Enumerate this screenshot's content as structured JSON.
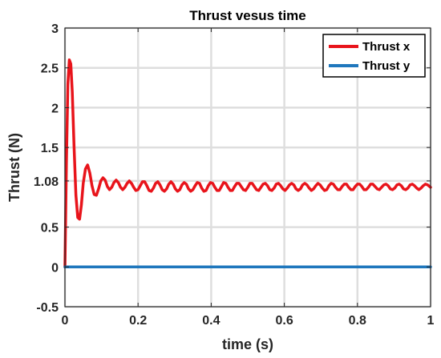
{
  "chart_data": {
    "type": "line",
    "title": "Thrust vesus time",
    "xlabel": "time (s)",
    "ylabel": "Thrust (N)",
    "xlim": [
      0,
      1
    ],
    "ylim": [
      -0.5,
      3
    ],
    "grid": true,
    "legend_position": "top-right",
    "x_ticks": [
      {
        "value": 0,
        "label": "0"
      },
      {
        "value": 0.2,
        "label": "0.2"
      },
      {
        "value": 0.4,
        "label": "0.4"
      },
      {
        "value": 0.6,
        "label": "0.6"
      },
      {
        "value": 0.8,
        "label": "0.8"
      },
      {
        "value": 1,
        "label": "1"
      }
    ],
    "y_ticks": [
      {
        "value": -0.5,
        "label": "-0.5"
      },
      {
        "value": 0,
        "label": "0"
      },
      {
        "value": 0.5,
        "label": "0.5"
      },
      {
        "value": 1.08,
        "label": "1.08"
      },
      {
        "value": 1.5,
        "label": "1.5"
      },
      {
        "value": 2,
        "label": "2"
      },
      {
        "value": 2.5,
        "label": "2.5"
      },
      {
        "value": 3,
        "label": "3"
      }
    ],
    "series": [
      {
        "name": "Thrust x",
        "color": "#e8141b",
        "x": [
          0,
          0.004,
          0.008,
          0.012,
          0.016,
          0.02,
          0.025,
          0.03,
          0.035,
          0.04,
          0.045,
          0.05,
          0.056,
          0.062,
          0.068,
          0.074,
          0.08,
          0.086,
          0.092,
          0.098,
          0.104,
          0.11,
          0.116,
          0.122,
          0.128,
          0.134,
          0.14,
          0.146,
          0.152,
          0.158,
          0.164,
          0.17,
          0.176,
          0.182,
          0.188,
          0.194,
          0.2,
          0.206,
          0.212,
          0.218,
          0.224,
          0.23,
          0.236,
          0.242,
          0.248,
          0.254,
          0.26,
          0.266,
          0.272,
          0.278,
          0.284,
          0.29,
          0.296,
          0.302,
          0.308,
          0.314,
          0.32,
          0.326,
          0.332,
          0.338,
          0.344,
          0.35,
          0.356,
          0.362,
          0.368,
          0.374,
          0.38,
          0.386,
          0.392,
          0.398,
          0.404,
          0.41,
          0.416,
          0.422,
          0.428,
          0.434,
          0.44,
          0.446,
          0.452,
          0.458,
          0.464,
          0.47,
          0.476,
          0.482,
          0.488,
          0.494,
          0.5,
          0.506,
          0.512,
          0.518,
          0.524,
          0.53,
          0.536,
          0.542,
          0.548,
          0.554,
          0.56,
          0.566,
          0.572,
          0.578,
          0.584,
          0.59,
          0.596,
          0.602,
          0.608,
          0.614,
          0.62,
          0.626,
          0.632,
          0.638,
          0.644,
          0.65,
          0.656,
          0.662,
          0.668,
          0.674,
          0.68,
          0.686,
          0.692,
          0.698,
          0.704,
          0.71,
          0.716,
          0.722,
          0.728,
          0.734,
          0.74,
          0.746,
          0.752,
          0.758,
          0.764,
          0.77,
          0.776,
          0.782,
          0.788,
          0.794,
          0.8,
          0.806,
          0.812,
          0.818,
          0.824,
          0.83,
          0.836,
          0.842,
          0.848,
          0.854,
          0.86,
          0.866,
          0.872,
          0.878,
          0.884,
          0.89,
          0.896,
          0.902,
          0.908,
          0.914,
          0.92,
          0.926,
          0.932,
          0.938,
          0.944,
          0.95,
          0.956,
          0.962,
          0.968,
          0.974,
          0.98,
          0.986,
          0.992,
          1.0
        ],
        "values": [
          0,
          1.3,
          2.3,
          2.6,
          2.55,
          2.2,
          1.5,
          0.9,
          0.62,
          0.6,
          0.78,
          1.05,
          1.23,
          1.28,
          1.18,
          1.02,
          0.91,
          0.9,
          0.98,
          1.08,
          1.12,
          1.09,
          1.01,
          0.97,
          1.0,
          1.06,
          1.09,
          1.06,
          1.0,
          0.97,
          1.0,
          1.05,
          1.08,
          1.05,
          1.0,
          0.96,
          0.97,
          1.02,
          1.07,
          1.07,
          1.02,
          0.96,
          0.95,
          0.99,
          1.05,
          1.07,
          1.03,
          0.97,
          0.95,
          0.98,
          1.04,
          1.07,
          1.04,
          0.98,
          0.95,
          0.97,
          1.03,
          1.06,
          1.04,
          0.98,
          0.95,
          0.97,
          1.02,
          1.06,
          1.05,
          0.99,
          0.95,
          0.96,
          1.02,
          1.06,
          1.05,
          1.0,
          0.96,
          0.96,
          1.01,
          1.06,
          1.05,
          1.0,
          0.96,
          0.96,
          1.01,
          1.05,
          1.05,
          1.01,
          0.97,
          0.96,
          1.0,
          1.05,
          1.05,
          1.01,
          0.97,
          0.96,
          1.0,
          1.04,
          1.05,
          1.02,
          0.97,
          0.96,
          0.99,
          1.04,
          1.05,
          1.02,
          0.98,
          0.96,
          0.99,
          1.03,
          1.05,
          1.03,
          0.98,
          0.96,
          0.98,
          1.03,
          1.05,
          1.03,
          0.99,
          0.96,
          0.98,
          1.02,
          1.05,
          1.03,
          0.99,
          0.96,
          0.97,
          1.02,
          1.05,
          1.04,
          1.0,
          0.97,
          0.97,
          1.01,
          1.04,
          1.04,
          1.0,
          0.97,
          0.97,
          1.01,
          1.04,
          1.04,
          1.01,
          0.97,
          0.97,
          1.0,
          1.04,
          1.04,
          1.01,
          0.98,
          0.97,
          1.0,
          1.03,
          1.04,
          1.02,
          0.98,
          0.97,
          0.99,
          1.03,
          1.04,
          1.02,
          0.98,
          0.97,
          0.99,
          1.03,
          1.04,
          1.02,
          0.99,
          0.97,
          0.99,
          1.02,
          1.04,
          1.03,
          1.0
        ]
      },
      {
        "name": "Thrust y",
        "color": "#1f77bd",
        "x": [
          0,
          1
        ],
        "values": [
          0,
          0
        ]
      }
    ]
  }
}
